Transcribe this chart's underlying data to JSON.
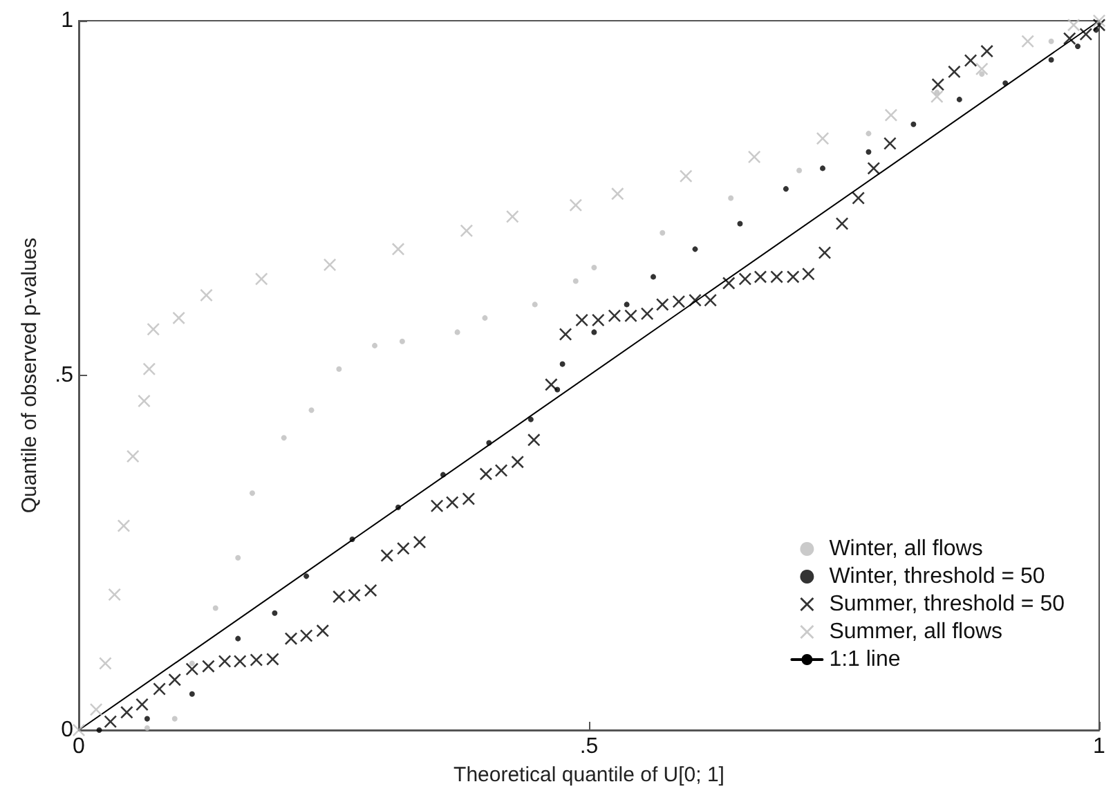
{
  "chart_data": {
    "type": "scatter",
    "xlabel": "Theoretical quantile of U[0; 1]",
    "ylabel": "Quantile of observed p-values",
    "xlim": [
      0,
      1
    ],
    "ylim": [
      0,
      1
    ],
    "xticks": [
      0,
      {
        "value": 0.5,
        "label": ".5"
      },
      1
    ],
    "yticks": [
      0,
      {
        "value": 0.5,
        "label": ".5"
      },
      1
    ],
    "grid": false,
    "legend": "bottom right",
    "series": [
      {
        "name": "Winter, all flows",
        "color": "#bdbdbd",
        "marker": "circle",
        "x": [
          0.067,
          0.094,
          0.111,
          0.134,
          0.156,
          0.17,
          0.201,
          0.228,
          0.255,
          0.29,
          0.317,
          0.371,
          0.398,
          0.447,
          0.487,
          0.505,
          0.572,
          0.639,
          0.706,
          0.774,
          0.841,
          0.885,
          0.953
        ],
        "values": [
          0.003,
          0.016,
          0.094,
          0.172,
          0.243,
          0.334,
          0.412,
          0.451,
          0.509,
          0.542,
          0.548,
          0.561,
          0.581,
          0.6,
          0.633,
          0.652,
          0.701,
          0.75,
          0.789,
          0.841,
          0.899,
          0.925,
          0.971
        ]
      },
      {
        "name": "Winter, threshold = 50",
        "color": "#000000",
        "marker": "circle",
        "x": [
          0.02,
          0.067,
          0.111,
          0.156,
          0.192,
          0.223,
          0.268,
          0.313,
          0.357,
          0.402,
          0.443,
          0.469,
          0.474,
          0.505,
          0.537,
          0.563,
          0.604,
          0.648,
          0.693,
          0.729,
          0.774,
          0.818,
          0.863,
          0.908,
          0.953,
          0.979,
          0.997
        ],
        "values": [
          0.0,
          0.016,
          0.051,
          0.129,
          0.165,
          0.217,
          0.269,
          0.314,
          0.36,
          0.405,
          0.438,
          0.48,
          0.516,
          0.561,
          0.6,
          0.639,
          0.678,
          0.714,
          0.763,
          0.792,
          0.815,
          0.854,
          0.889,
          0.912,
          0.945,
          0.964,
          0.987
        ]
      },
      {
        "name": "Summer, threshold = 50",
        "color": "#000000",
        "marker": "cross",
        "x": [
          0.031,
          0.047,
          0.062,
          0.079,
          0.094,
          0.111,
          0.127,
          0.143,
          0.158,
          0.174,
          0.19,
          0.208,
          0.223,
          0.239,
          0.255,
          0.27,
          0.286,
          0.302,
          0.318,
          0.334,
          0.351,
          0.366,
          0.382,
          0.399,
          0.414,
          0.43,
          0.446,
          0.463,
          0.477,
          0.493,
          0.509,
          0.525,
          0.541,
          0.557,
          0.572,
          0.588,
          0.604,
          0.619,
          0.637,
          0.653,
          0.668,
          0.684,
          0.7,
          0.715,
          0.731,
          0.748,
          0.764,
          0.779,
          0.795,
          0.842,
          0.858,
          0.874,
          0.89,
          0.971,
          0.987,
          1.0
        ],
        "values": [
          0.012,
          0.025,
          0.036,
          0.058,
          0.071,
          0.086,
          0.09,
          0.097,
          0.097,
          0.099,
          0.1,
          0.129,
          0.133,
          0.14,
          0.188,
          0.19,
          0.197,
          0.246,
          0.256,
          0.265,
          0.316,
          0.321,
          0.326,
          0.361,
          0.366,
          0.378,
          0.409,
          0.487,
          0.558,
          0.578,
          0.578,
          0.584,
          0.584,
          0.587,
          0.6,
          0.604,
          0.606,
          0.606,
          0.63,
          0.636,
          0.639,
          0.639,
          0.639,
          0.643,
          0.673,
          0.714,
          0.75,
          0.792,
          0.827,
          0.91,
          0.928,
          0.944,
          0.957,
          0.975,
          0.981,
          0.994
        ]
      },
      {
        "name": "Summer, all flows",
        "color": "#bdbdbd",
        "marker": "cross",
        "x": [
          0.0,
          0.017,
          0.026,
          0.035,
          0.044,
          0.053,
          0.064,
          0.069,
          0.073,
          0.098,
          0.125,
          0.179,
          0.246,
          0.313,
          0.38,
          0.425,
          0.487,
          0.528,
          0.595,
          0.662,
          0.729,
          0.796,
          0.841,
          0.885,
          0.93,
          0.975,
          1.0
        ],
        "values": [
          0.0,
          0.029,
          0.094,
          0.191,
          0.288,
          0.386,
          0.464,
          0.509,
          0.565,
          0.581,
          0.613,
          0.636,
          0.656,
          0.678,
          0.704,
          0.724,
          0.74,
          0.756,
          0.781,
          0.808,
          0.834,
          0.867,
          0.893,
          0.932,
          0.971,
          0.994,
          1.0
        ]
      },
      {
        "name": "1:1 line",
        "type": "line",
        "color": "#000000",
        "marker": "none",
        "line_style": "solid",
        "x": [
          0,
          1
        ],
        "values": [
          0,
          1
        ]
      }
    ]
  }
}
